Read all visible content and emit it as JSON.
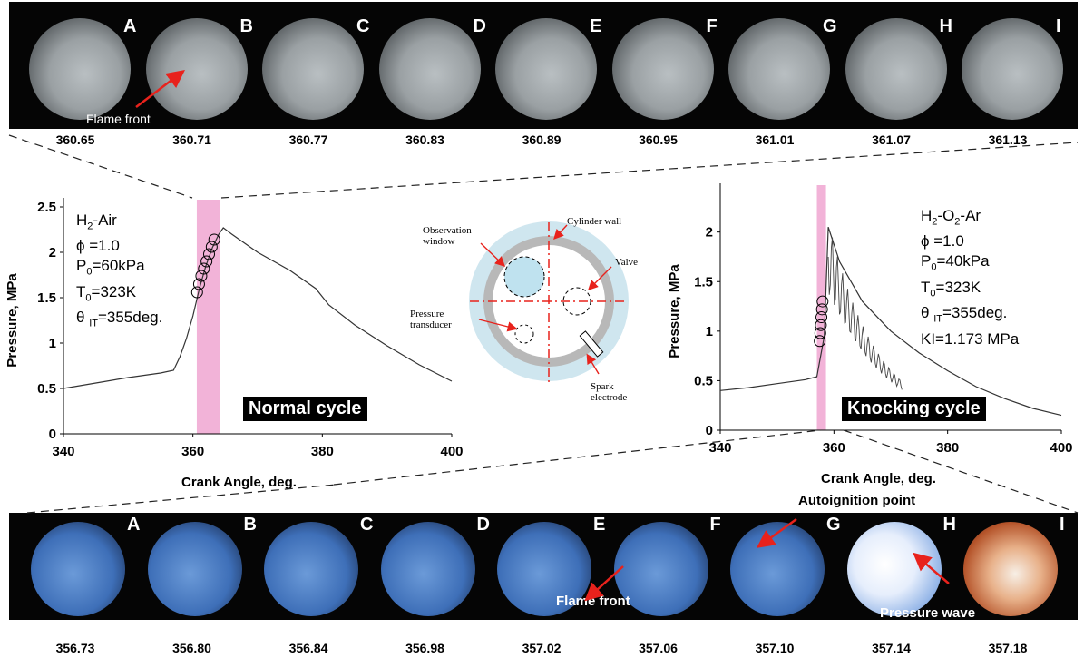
{
  "top_strip": {
    "frames": [
      {
        "letter": "A",
        "angle": "360.65"
      },
      {
        "letter": "B",
        "angle": "360.71"
      },
      {
        "letter": "C",
        "angle": "360.77"
      },
      {
        "letter": "D",
        "angle": "360.83"
      },
      {
        "letter": "E",
        "angle": "360.89"
      },
      {
        "letter": "F",
        "angle": "360.95"
      },
      {
        "letter": "G",
        "angle": "361.01"
      },
      {
        "letter": "H",
        "angle": "361.07"
      },
      {
        "letter": "I",
        "angle": "361.13"
      }
    ],
    "annotation": "Flame front"
  },
  "bottom_strip": {
    "frames": [
      {
        "letter": "A",
        "angle": "356.73"
      },
      {
        "letter": "B",
        "angle": "356.80"
      },
      {
        "letter": "C",
        "angle": "356.84"
      },
      {
        "letter": "D",
        "angle": "356.98"
      },
      {
        "letter": "E",
        "angle": "357.02"
      },
      {
        "letter": "F",
        "angle": "357.06"
      },
      {
        "letter": "G",
        "angle": "357.10"
      },
      {
        "letter": "H",
        "angle": "357.14"
      },
      {
        "letter": "I",
        "angle": "357.18"
      }
    ],
    "annotations": {
      "flame_front": "Flame front",
      "autoignition": "Autoignition point",
      "pressure_wave": "Pressure wave"
    }
  },
  "left_params": {
    "mixture": "H2-Air",
    "phi": "ϕ =1.0",
    "p0": "P0=60kPa",
    "t0": "T0=323K",
    "theta": "θ IT=355deg."
  },
  "right_params": {
    "mixture": "H2-O2-Ar",
    "phi": "ϕ =1.0",
    "p0": "P0=40kPa",
    "t0": "T0=323K",
    "theta": "θ IT=355deg.",
    "ki": "KI=1.173 MPa"
  },
  "diagram": {
    "cylinder_wall": "Cylinder wall",
    "observation_window": "Observation window",
    "valve": "Valve",
    "pressure_transducer": "Pressure transducer",
    "spark_electrode": "Spark electrode"
  },
  "colors": {
    "highlight": "#f2b3d8",
    "arrow": "#e8221c",
    "normal_frame": "#9aa0a3",
    "knock_frame": "#3e6fb8",
    "diagram_fill": "#cfe6ef"
  },
  "chart_data": [
    {
      "type": "line",
      "badge": "Normal cycle",
      "xlabel": "Crank  Angle, deg.",
      "ylabel": "Pressure, MPa",
      "xlim": [
        340,
        400
      ],
      "ylim": [
        0,
        2.5
      ],
      "xticks": [
        340,
        360,
        380,
        400
      ],
      "yticks": [
        0,
        0.5,
        1,
        1.5,
        2,
        2.5
      ],
      "highlight_x": [
        360.6,
        364.2
      ],
      "series": [
        {
          "values": [
            [
              340,
              0.5
            ],
            [
              345,
              0.56
            ],
            [
              350,
              0.62
            ],
            [
              355,
              0.67
            ],
            [
              357,
              0.7
            ],
            [
              358,
              0.85
            ],
            [
              359,
              1.05
            ],
            [
              360,
              1.3
            ],
            [
              361,
              1.6
            ],
            [
              362,
              1.85
            ],
            [
              363,
              2.05
            ],
            [
              364,
              2.2
            ],
            [
              364.7,
              2.27
            ],
            [
              366,
              2.2
            ],
            [
              370,
              2.0
            ],
            [
              375,
              1.8
            ],
            [
              379,
              1.6
            ],
            [
              381,
              1.42
            ],
            [
              385,
              1.2
            ],
            [
              390,
              0.97
            ],
            [
              395,
              0.76
            ],
            [
              400,
              0.58
            ]
          ]
        }
      ],
      "markers": [
        [
          360.65,
          1.56
        ],
        [
          360.95,
          1.65
        ],
        [
          361.3,
          1.74
        ],
        [
          361.7,
          1.82
        ],
        [
          362.1,
          1.9
        ],
        [
          362.5,
          1.98
        ],
        [
          362.9,
          2.06
        ],
        [
          363.3,
          2.14
        ]
      ]
    },
    {
      "type": "line",
      "badge": "Knocking cycle",
      "xlabel": "Crank Angle, deg.",
      "ylabel": "Pressure, MPa",
      "xlim": [
        340,
        400
      ],
      "ylim": [
        0,
        2.4
      ],
      "xticks": [
        340,
        360,
        380,
        400
      ],
      "yticks": [
        0,
        0.5,
        1,
        1.5,
        2
      ],
      "highlight_x": [
        357.0,
        358.6
      ],
      "series": [
        {
          "values": [
            [
              340,
              0.4
            ],
            [
              345,
              0.43
            ],
            [
              350,
              0.47
            ],
            [
              355,
              0.51
            ],
            [
              357,
              0.54
            ],
            [
              358.3,
              0.95
            ],
            [
              359,
              2.05
            ],
            [
              361,
              1.7
            ],
            [
              365,
              1.3
            ],
            [
              370,
              1.0
            ],
            [
              375,
              0.78
            ],
            [
              380,
              0.6
            ],
            [
              385,
              0.44
            ],
            [
              390,
              0.32
            ],
            [
              395,
              0.22
            ],
            [
              400,
              0.15
            ]
          ]
        }
      ],
      "markers": [
        [
          357.5,
          0.9
        ],
        [
          357.6,
          0.98
        ],
        [
          357.7,
          1.06
        ],
        [
          357.8,
          1.14
        ],
        [
          357.9,
          1.22
        ],
        [
          358.0,
          1.3
        ]
      ]
    }
  ]
}
